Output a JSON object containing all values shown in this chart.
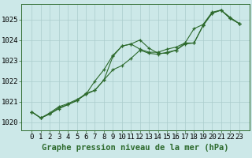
{
  "xlabel": "Graphe pression niveau de la mer (hPa)",
  "x": [
    0,
    1,
    2,
    3,
    4,
    5,
    6,
    7,
    8,
    9,
    10,
    11,
    12,
    13,
    14,
    15,
    16,
    17,
    18,
    19,
    20,
    21,
    22,
    23
  ],
  "line1": [
    1020.5,
    1020.2,
    1020.4,
    1020.7,
    1020.85,
    1021.05,
    1021.4,
    1021.55,
    1022.05,
    1023.2,
    1023.7,
    1023.8,
    1024.0,
    1023.6,
    1023.35,
    1023.35,
    1023.5,
    1023.8,
    1023.85,
    1024.7,
    1025.3,
    1025.45,
    1025.05,
    1024.8
  ],
  "line2": [
    1020.5,
    1020.2,
    1020.4,
    1020.65,
    1020.85,
    1021.05,
    1021.35,
    1021.55,
    1022.05,
    1022.55,
    1022.75,
    1023.1,
    1023.5,
    1023.35,
    1023.3,
    1023.4,
    1023.5,
    1023.85,
    1023.85,
    1024.7,
    1025.3,
    1025.45,
    1025.05,
    1024.8
  ],
  "line3": [
    1020.5,
    1020.2,
    1020.45,
    1020.75,
    1020.9,
    1021.1,
    1021.35,
    1022.0,
    1022.55,
    1023.25,
    1023.7,
    1023.8,
    1023.55,
    1023.4,
    1023.4,
    1023.55,
    1023.65,
    1023.85,
    1024.55,
    1024.75,
    1025.35,
    1025.45,
    1025.1,
    1024.8
  ],
  "line_color": "#2d6a2d",
  "bg_color": "#cce8e8",
  "grid_color": "#aacccc",
  "ylim": [
    1019.6,
    1025.75
  ],
  "yticks": [
    1020,
    1021,
    1022,
    1023,
    1024,
    1025
  ],
  "xtick_labels": [
    "0",
    "1",
    "2",
    "3",
    "4",
    "5",
    "6",
    "7",
    "8",
    "9",
    "10",
    "11",
    "12",
    "13",
    "14",
    "15",
    "16",
    "17",
    "18",
    "19",
    "20",
    "21",
    "22",
    "23"
  ],
  "marker": "+",
  "markersize": 3.5,
  "linewidth": 0.8,
  "xlabel_fontsize": 7.5,
  "tick_fontsize": 6.5
}
